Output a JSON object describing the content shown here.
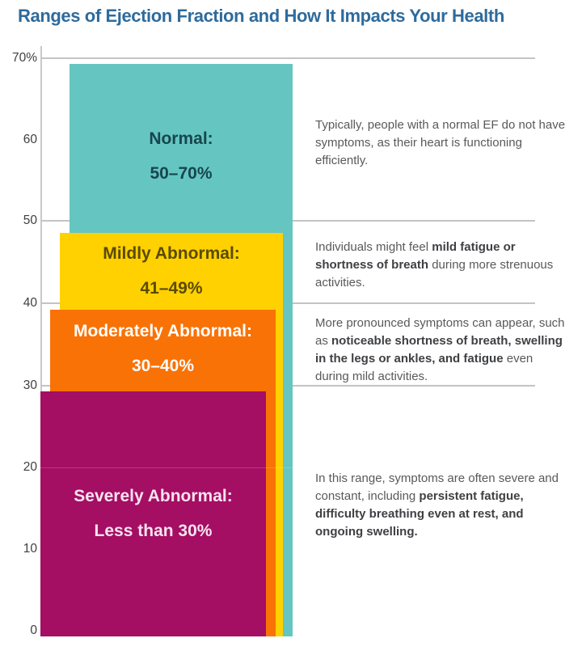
{
  "title": "Ranges of Ejection Fraction and How It Impacts Your Health",
  "colors": {
    "title": "#2E6B9C",
    "gridline": "#C4C4C4",
    "axis_line": "#C8C8C8",
    "axis_text": "#3F3F3F",
    "body_text": "#58595B",
    "body_text_bold": "#3F4043"
  },
  "axis": {
    "ticks": [
      {
        "label": "70%",
        "value": 70
      },
      {
        "label": "60",
        "value": 60
      },
      {
        "label": "50",
        "value": 50
      },
      {
        "label": "40",
        "value": 40
      },
      {
        "label": "30",
        "value": 30
      },
      {
        "label": "20",
        "value": 20
      },
      {
        "label": "10",
        "value": 10
      },
      {
        "label": "0",
        "value": 0
      }
    ]
  },
  "chart_data": {
    "type": "bar",
    "subtype": "overlapping-range-bands",
    "title": "Ranges of Ejection Fraction and How It Impacts Your Health",
    "xlabel": "",
    "ylabel": "",
    "ylim": [
      0,
      70
    ],
    "yticks": [
      "70%",
      "60",
      "50",
      "40",
      "30",
      "20",
      "10",
      "0"
    ],
    "gridlines_at": [
      70,
      50,
      40,
      30
    ],
    "legend": "none",
    "bands": [
      {
        "name": "Normal",
        "range": [
          50,
          70
        ],
        "label_line1": "Normal:",
        "label_line2": "50–70%",
        "color": "#65C6C1",
        "label_color": "#17464E",
        "description_segments": [
          {
            "text": "Typically, people with a normal EF do not have symptoms, as their heart is functioning efficiently.",
            "bold": false
          }
        ]
      },
      {
        "name": "Mildly Abnormal",
        "range": [
          41,
          49
        ],
        "label_line1": "Mildly Abnormal:",
        "label_line2": "41–49%",
        "color": "#FFD100",
        "label_color": "#5A4A00",
        "description_segments": [
          {
            "text": "Individuals might feel ",
            "bold": false
          },
          {
            "text": "mild fatigue or shortness of breath",
            "bold": true
          },
          {
            "text": " during more strenuous activities.",
            "bold": false
          }
        ]
      },
      {
        "name": "Moderately Abnormal",
        "range": [
          30,
          40
        ],
        "label_line1": "Moderately Abnormal:",
        "label_line2": "30–40%",
        "color": "#F97206",
        "label_color": "#FFFFFF",
        "description_segments": [
          {
            "text": "More pronounced symptoms can appear, such as ",
            "bold": false
          },
          {
            "text": "noticeable shortness of breath, swelling in the legs or ankles, and fatigue",
            "bold": true
          },
          {
            "text": " even during mild activities.",
            "bold": false
          }
        ]
      },
      {
        "name": "Severely Abnormal",
        "range": [
          0,
          30
        ],
        "label_line1": "Severely Abnormal:",
        "label_line2": "Less than 30%",
        "color": "#A40E63",
        "label_color": "#F8E3EF",
        "description_segments": [
          {
            "text": "In this range, symptoms are often severe and constant, including ",
            "bold": false
          },
          {
            "text": "persistent fatigue, difficulty breathing even at rest, and ongoing swelling.",
            "bold": true
          }
        ]
      }
    ]
  }
}
